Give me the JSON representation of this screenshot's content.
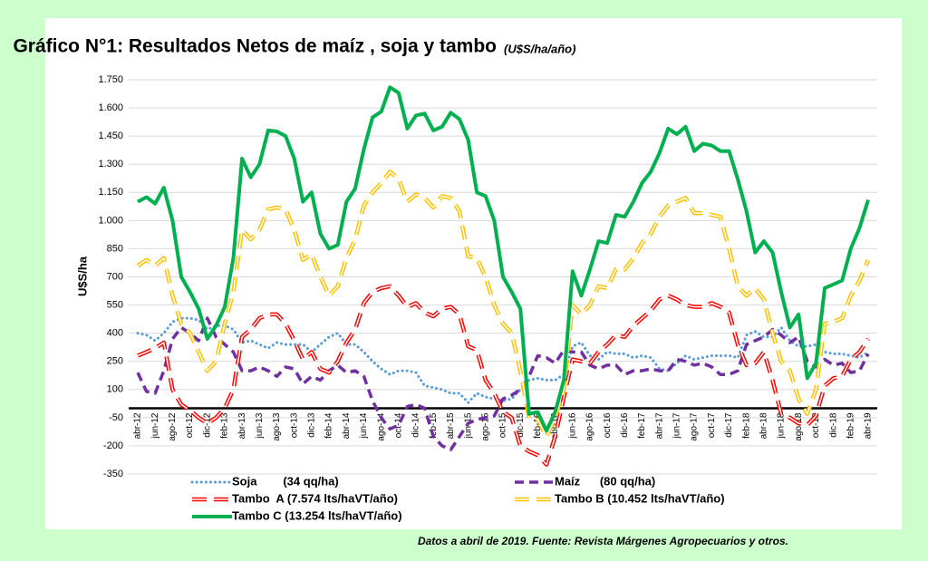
{
  "chart_data": {
    "type": "line",
    "title": "Gráfico N°1: Resultados Netos de maíz , soja y tambo",
    "subtitle": "(U$S/ha/año)",
    "y_label": "U$S/ha",
    "note": "Datos a abril de 2019. Fuente: Revista Márgenes Agropecuarios y otros.",
    "categories": [
      "abr-12",
      null,
      "jun-12",
      null,
      "ago-12",
      null,
      "oct-12",
      null,
      "dic-12",
      null,
      "feb-13",
      null,
      "abr-13",
      null,
      "jun-13",
      null,
      "ago-13",
      null,
      "oct-13",
      null,
      "dic-13",
      null,
      "feb-14",
      null,
      "abr-14",
      null,
      "jun-14",
      null,
      "ago-14",
      null,
      "oct-14",
      null,
      "dic-14",
      null,
      "feb-15",
      null,
      "abr-15",
      null,
      "jun-15",
      null,
      "ago-15",
      null,
      "oct-15",
      null,
      "dic-15",
      null,
      "feb-16",
      null,
      "abr-16",
      null,
      "jun-16",
      null,
      "ago-16",
      null,
      "oct-16",
      null,
      "dic-16",
      null,
      "feb-17",
      null,
      "abr-17",
      null,
      "jun-17",
      null,
      "ago-17",
      null,
      "oct-17",
      null,
      "dic-17",
      null,
      "feb-18",
      null,
      "abr-18",
      null,
      "jun-18",
      null,
      "ago-18",
      null,
      "oct-18",
      null,
      "dic-18",
      null,
      "feb-19",
      null,
      "abr-19"
    ],
    "series": [
      {
        "name": "Soja        (34 qq/ha)",
        "color": "#5b9bd5",
        "style": "dotted",
        "values": [
          400,
          390,
          360,
          400,
          460,
          480,
          480,
          470,
          420,
          440,
          440,
          420,
          350,
          360,
          340,
          320,
          350,
          340,
          340,
          340,
          300,
          340,
          380,
          400,
          340,
          340,
          300,
          250,
          210,
          180,
          200,
          200,
          190,
          120,
          110,
          100,
          80,
          80,
          30,
          80,
          60,
          50,
          40,
          50,
          100,
          150,
          160,
          150,
          150,
          180,
          330,
          350,
          280,
          260,
          300,
          290,
          290,
          270,
          280,
          270,
          210,
          200,
          240,
          280,
          260,
          270,
          280,
          280,
          280,
          270,
          390,
          410,
          380,
          380,
          430,
          360,
          330,
          330,
          340,
          300,
          290,
          290,
          280,
          270,
          300
        ]
      },
      {
        "name": "Maíz      (80 qq/ha)",
        "color": "#7030a0",
        "style": "dashed",
        "values": [
          190,
          90,
          80,
          200,
          370,
          430,
          400,
          360,
          480,
          380,
          340,
          300,
          200,
          200,
          220,
          200,
          170,
          220,
          210,
          130,
          170,
          150,
          200,
          230,
          190,
          200,
          170,
          40,
          -50,
          -110,
          -90,
          10,
          20,
          0,
          -150,
          -200,
          -220,
          -150,
          -80,
          -60,
          -50,
          -40,
          50,
          70,
          100,
          170,
          280,
          270,
          240,
          310,
          300,
          300,
          230,
          210,
          230,
          230,
          180,
          200,
          200,
          210,
          200,
          200,
          260,
          250,
          230,
          240,
          220,
          180,
          180,
          200,
          340,
          360,
          380,
          420,
          390,
          350,
          380,
          250,
          220,
          260,
          230,
          240,
          190,
          200,
          290
        ]
      },
      {
        "name": "Tambo  A (7.574 lts/haVT/año)",
        "color": "#ff0000",
        "style": "double",
        "values": [
          280,
          300,
          320,
          350,
          100,
          20,
          -10,
          -50,
          -80,
          -50,
          0,
          100,
          380,
          420,
          480,
          500,
          500,
          450,
          360,
          260,
          300,
          210,
          190,
          250,
          350,
          420,
          560,
          620,
          640,
          650,
          600,
          540,
          560,
          510,
          490,
          530,
          540,
          500,
          330,
          310,
          150,
          80,
          -20,
          -50,
          -200,
          -230,
          -250,
          -300,
          -150,
          60,
          260,
          250,
          240,
          300,
          340,
          390,
          380,
          440,
          480,
          520,
          580,
          600,
          580,
          550,
          540,
          540,
          560,
          540,
          510,
          340,
          230,
          240,
          300,
          150,
          -30,
          -50,
          -80,
          -90,
          -40,
          120,
          160,
          170,
          260,
          300,
          370
        ]
      },
      {
        "name": "Tambo B (10.452 lts/haVT/año)",
        "color": "#ffc000",
        "style": "double",
        "values": [
          760,
          790,
          760,
          800,
          600,
          450,
          400,
          300,
          200,
          250,
          450,
          620,
          950,
          900,
          950,
          1060,
          1070,
          1060,
          950,
          790,
          820,
          700,
          600,
          650,
          800,
          900,
          1080,
          1150,
          1200,
          1260,
          1220,
          1100,
          1140,
          1120,
          1070,
          1130,
          1120,
          1050,
          810,
          800,
          700,
          550,
          450,
          400,
          200,
          -50,
          -60,
          -150,
          -50,
          100,
          550,
          500,
          550,
          650,
          640,
          740,
          740,
          800,
          880,
          930,
          1020,
          1080,
          1100,
          1120,
          1040,
          1040,
          1030,
          1020,
          850,
          650,
          600,
          640,
          580,
          400,
          250,
          200,
          50,
          -30,
          100,
          450,
          460,
          480,
          600,
          680,
          790
        ]
      },
      {
        "name": "Tambo C (13.254 lts/haVT/año)",
        "color": "#00b050",
        "style": "solid",
        "values": [
          1100,
          1125,
          1090,
          1175,
          1000,
          700,
          620,
          530,
          370,
          440,
          540,
          800,
          1330,
          1230,
          1300,
          1480,
          1475,
          1450,
          1330,
          1100,
          1150,
          930,
          850,
          870,
          1100,
          1170,
          1380,
          1550,
          1580,
          1710,
          1680,
          1490,
          1560,
          1570,
          1480,
          1500,
          1575,
          1540,
          1430,
          1150,
          1130,
          1000,
          700,
          620,
          530,
          -30,
          -20,
          -120,
          -20,
          150,
          730,
          600,
          740,
          890,
          880,
          1030,
          1020,
          1100,
          1200,
          1260,
          1360,
          1490,
          1460,
          1500,
          1370,
          1410,
          1400,
          1370,
          1370,
          1220,
          1050,
          830,
          890,
          830,
          620,
          430,
          500,
          160,
          240,
          640,
          660,
          680,
          850,
          960,
          1110
        ]
      }
    ],
    "ylim": [
      -350,
      1750
    ],
    "yticks": [
      {
        "value": 1750,
        "label": "1.750"
      },
      {
        "value": 1600,
        "label": "1.600"
      },
      {
        "value": 1450,
        "label": "1.450"
      },
      {
        "value": 1300,
        "label": "1.300"
      },
      {
        "value": 1150,
        "label": "1.150"
      },
      {
        "value": 1000,
        "label": "1.000"
      },
      850,
      700,
      550,
      400,
      250,
      100,
      -50,
      -200,
      -350
    ],
    "grid": true
  }
}
